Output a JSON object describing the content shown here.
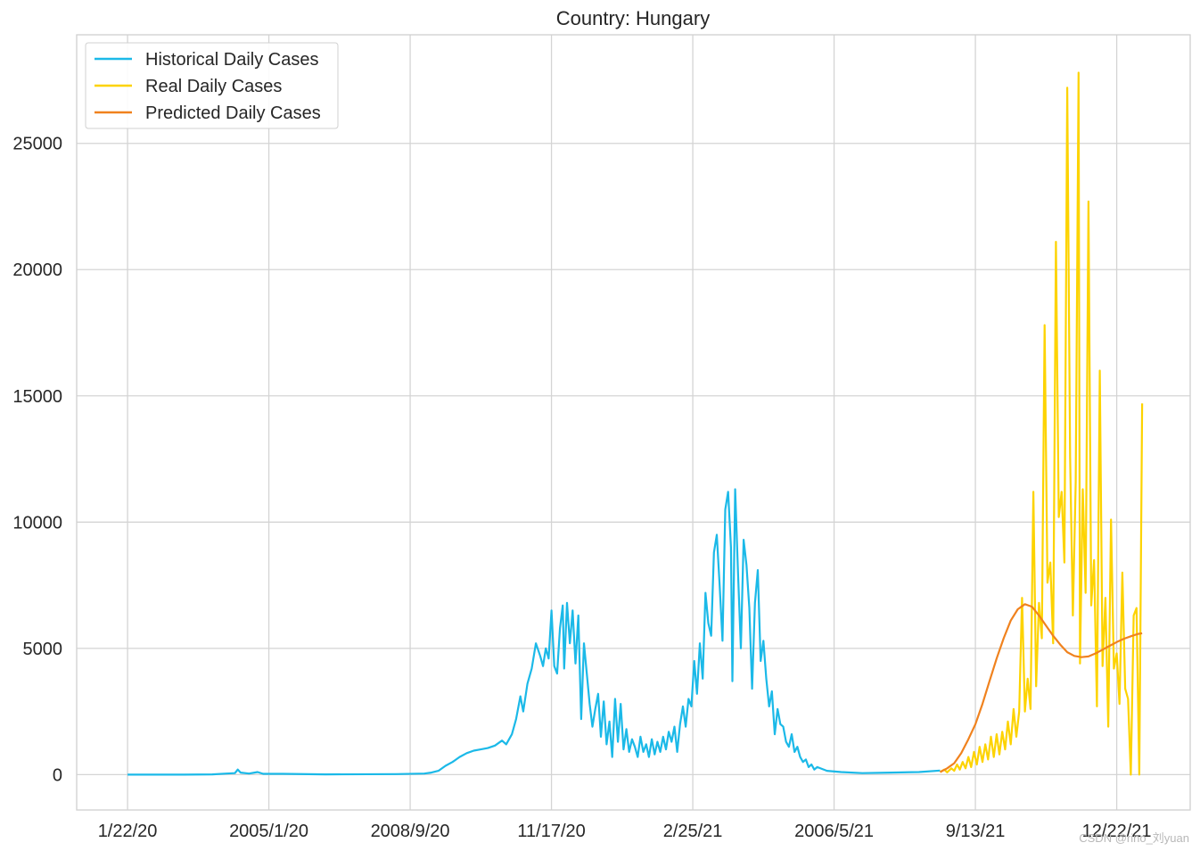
{
  "chart_data": {
    "type": "line",
    "title": "Country: Hungary",
    "xlabel": "",
    "ylabel": "",
    "x_ticks": [
      {
        "label": "1/22/20",
        "day": 0
      },
      {
        "label": "2005/1/20",
        "day": 100
      },
      {
        "label": "2008/9/20",
        "day": 200
      },
      {
        "label": "11/17/20",
        "day": 300
      },
      {
        "label": "2/25/21",
        "day": 400
      },
      {
        "label": "2006/5/21",
        "day": 500
      },
      {
        "label": "9/13/21",
        "day": 600
      },
      {
        "label": "12/22/21",
        "day": 700
      }
    ],
    "xlim": [
      -36,
      752
    ],
    "y_ticks": [
      0,
      5000,
      10000,
      15000,
      20000,
      25000
    ],
    "ylim": [
      -1400,
      29300
    ],
    "grid": true,
    "legend_position": "top-left",
    "series": [
      {
        "name": "Historical Daily Cases",
        "color": "#1bb9e8",
        "points": [
          [
            0,
            0
          ],
          [
            40,
            0
          ],
          [
            60,
            10
          ],
          [
            70,
            40
          ],
          [
            76,
            60
          ],
          [
            78,
            200
          ],
          [
            80,
            80
          ],
          [
            86,
            40
          ],
          [
            92,
            100
          ],
          [
            96,
            30
          ],
          [
            110,
            30
          ],
          [
            140,
            10
          ],
          [
            190,
            20
          ],
          [
            210,
            40
          ],
          [
            215,
            80
          ],
          [
            220,
            150
          ],
          [
            225,
            350
          ],
          [
            230,
            500
          ],
          [
            235,
            700
          ],
          [
            240,
            850
          ],
          [
            245,
            950
          ],
          [
            250,
            1000
          ],
          [
            255,
            1050
          ],
          [
            260,
            1150
          ],
          [
            265,
            1350
          ],
          [
            268,
            1200
          ],
          [
            272,
            1600
          ],
          [
            275,
            2200
          ],
          [
            278,
            3100
          ],
          [
            280,
            2500
          ],
          [
            283,
            3600
          ],
          [
            286,
            4200
          ],
          [
            289,
            5200
          ],
          [
            292,
            4700
          ],
          [
            294,
            4300
          ],
          [
            296,
            5000
          ],
          [
            298,
            4600
          ],
          [
            300,
            6500
          ],
          [
            302,
            4300
          ],
          [
            304,
            4000
          ],
          [
            306,
            5800
          ],
          [
            308,
            6700
          ],
          [
            309,
            4200
          ],
          [
            311,
            6800
          ],
          [
            313,
            5200
          ],
          [
            315,
            6500
          ],
          [
            317,
            4400
          ],
          [
            319,
            6300
          ],
          [
            321,
            2200
          ],
          [
            323,
            5200
          ],
          [
            325,
            4000
          ],
          [
            327,
            2800
          ],
          [
            329,
            1900
          ],
          [
            331,
            2600
          ],
          [
            333,
            3200
          ],
          [
            335,
            1500
          ],
          [
            337,
            2900
          ],
          [
            339,
            1200
          ],
          [
            341,
            2100
          ],
          [
            343,
            700
          ],
          [
            345,
            3000
          ],
          [
            347,
            1300
          ],
          [
            349,
            2800
          ],
          [
            351,
            1000
          ],
          [
            353,
            1800
          ],
          [
            355,
            900
          ],
          [
            357,
            1400
          ],
          [
            359,
            1100
          ],
          [
            361,
            700
          ],
          [
            363,
            1500
          ],
          [
            365,
            900
          ],
          [
            367,
            1200
          ],
          [
            369,
            700
          ],
          [
            371,
            1400
          ],
          [
            373,
            800
          ],
          [
            375,
            1300
          ],
          [
            377,
            900
          ],
          [
            379,
            1500
          ],
          [
            381,
            1000
          ],
          [
            383,
            1700
          ],
          [
            385,
            1300
          ],
          [
            387,
            1900
          ],
          [
            389,
            900
          ],
          [
            391,
            2000
          ],
          [
            393,
            2700
          ],
          [
            395,
            1900
          ],
          [
            397,
            3000
          ],
          [
            399,
            2700
          ],
          [
            401,
            4500
          ],
          [
            403,
            3200
          ],
          [
            405,
            5200
          ],
          [
            407,
            3800
          ],
          [
            409,
            7200
          ],
          [
            411,
            6000
          ],
          [
            413,
            5500
          ],
          [
            415,
            8800
          ],
          [
            417,
            9500
          ],
          [
            419,
            7500
          ],
          [
            421,
            5300
          ],
          [
            423,
            10500
          ],
          [
            425,
            11200
          ],
          [
            427,
            9000
          ],
          [
            428,
            3700
          ],
          [
            430,
            11300
          ],
          [
            432,
            8000
          ],
          [
            434,
            5000
          ],
          [
            436,
            9300
          ],
          [
            438,
            8300
          ],
          [
            440,
            6600
          ],
          [
            442,
            3400
          ],
          [
            444,
            6800
          ],
          [
            446,
            8100
          ],
          [
            448,
            4500
          ],
          [
            450,
            5300
          ],
          [
            452,
            3800
          ],
          [
            454,
            2700
          ],
          [
            456,
            3300
          ],
          [
            458,
            1600
          ],
          [
            460,
            2600
          ],
          [
            462,
            2000
          ],
          [
            464,
            1900
          ],
          [
            466,
            1300
          ],
          [
            468,
            1100
          ],
          [
            470,
            1600
          ],
          [
            472,
            900
          ],
          [
            474,
            1100
          ],
          [
            476,
            700
          ],
          [
            478,
            500
          ],
          [
            480,
            600
          ],
          [
            482,
            300
          ],
          [
            484,
            400
          ],
          [
            486,
            200
          ],
          [
            488,
            300
          ],
          [
            495,
            150
          ],
          [
            505,
            100
          ],
          [
            520,
            60
          ],
          [
            540,
            80
          ],
          [
            560,
            100
          ],
          [
            575,
            160
          ]
        ]
      },
      {
        "name": "Real Daily Cases",
        "color": "#fdd300",
        "points": [
          [
            575,
            100
          ],
          [
            578,
            200
          ],
          [
            580,
            90
          ],
          [
            583,
            250
          ],
          [
            585,
            150
          ],
          [
            587,
            400
          ],
          [
            589,
            200
          ],
          [
            591,
            500
          ],
          [
            593,
            250
          ],
          [
            595,
            700
          ],
          [
            597,
            300
          ],
          [
            599,
            900
          ],
          [
            601,
            400
          ],
          [
            603,
            1100
          ],
          [
            605,
            500
          ],
          [
            607,
            1200
          ],
          [
            609,
            600
          ],
          [
            611,
            1500
          ],
          [
            613,
            700
          ],
          [
            615,
            1600
          ],
          [
            617,
            800
          ],
          [
            619,
            1700
          ],
          [
            621,
            1000
          ],
          [
            623,
            2100
          ],
          [
            625,
            1200
          ],
          [
            627,
            2600
          ],
          [
            629,
            1500
          ],
          [
            631,
            2500
          ],
          [
            633,
            7000
          ],
          [
            635,
            2500
          ],
          [
            637,
            3800
          ],
          [
            639,
            2600
          ],
          [
            641,
            11200
          ],
          [
            643,
            3500
          ],
          [
            645,
            6800
          ],
          [
            647,
            5400
          ],
          [
            649,
            17800
          ],
          [
            651,
            7600
          ],
          [
            653,
            8400
          ],
          [
            655,
            5200
          ],
          [
            657,
            21100
          ],
          [
            659,
            10200
          ],
          [
            661,
            11200
          ],
          [
            663,
            8400
          ],
          [
            665,
            27200
          ],
          [
            667,
            12600
          ],
          [
            669,
            6300
          ],
          [
            671,
            11600
          ],
          [
            673,
            27800
          ],
          [
            674,
            4400
          ],
          [
            676,
            11300
          ],
          [
            678,
            7200
          ],
          [
            680,
            22700
          ],
          [
            682,
            6700
          ],
          [
            684,
            8500
          ],
          [
            686,
            2700
          ],
          [
            688,
            16000
          ],
          [
            690,
            4300
          ],
          [
            692,
            7000
          ],
          [
            694,
            1900
          ],
          [
            696,
            10100
          ],
          [
            698,
            4200
          ],
          [
            700,
            4800
          ],
          [
            702,
            2800
          ],
          [
            704,
            8000
          ],
          [
            706,
            3400
          ],
          [
            708,
            3000
          ],
          [
            710,
            0
          ],
          [
            712,
            6300
          ],
          [
            714,
            6600
          ],
          [
            716,
            0
          ],
          [
            718,
            14700
          ]
        ]
      },
      {
        "name": "Predicted Daily Cases",
        "color": "#f0821e",
        "points": [
          [
            575,
            100
          ],
          [
            580,
            250
          ],
          [
            585,
            450
          ],
          [
            590,
            850
          ],
          [
            595,
            1400
          ],
          [
            600,
            2000
          ],
          [
            605,
            2800
          ],
          [
            610,
            3700
          ],
          [
            615,
            4600
          ],
          [
            620,
            5400
          ],
          [
            625,
            6100
          ],
          [
            630,
            6550
          ],
          [
            635,
            6750
          ],
          [
            640,
            6650
          ],
          [
            645,
            6300
          ],
          [
            650,
            5900
          ],
          [
            655,
            5500
          ],
          [
            660,
            5150
          ],
          [
            665,
            4850
          ],
          [
            670,
            4700
          ],
          [
            675,
            4650
          ],
          [
            680,
            4680
          ],
          [
            685,
            4800
          ],
          [
            690,
            4950
          ],
          [
            695,
            5100
          ],
          [
            700,
            5250
          ],
          [
            705,
            5380
          ],
          [
            710,
            5480
          ],
          [
            715,
            5570
          ],
          [
            718,
            5600
          ]
        ]
      }
    ]
  },
  "watermark": "CSDN @rino_刘yuan"
}
